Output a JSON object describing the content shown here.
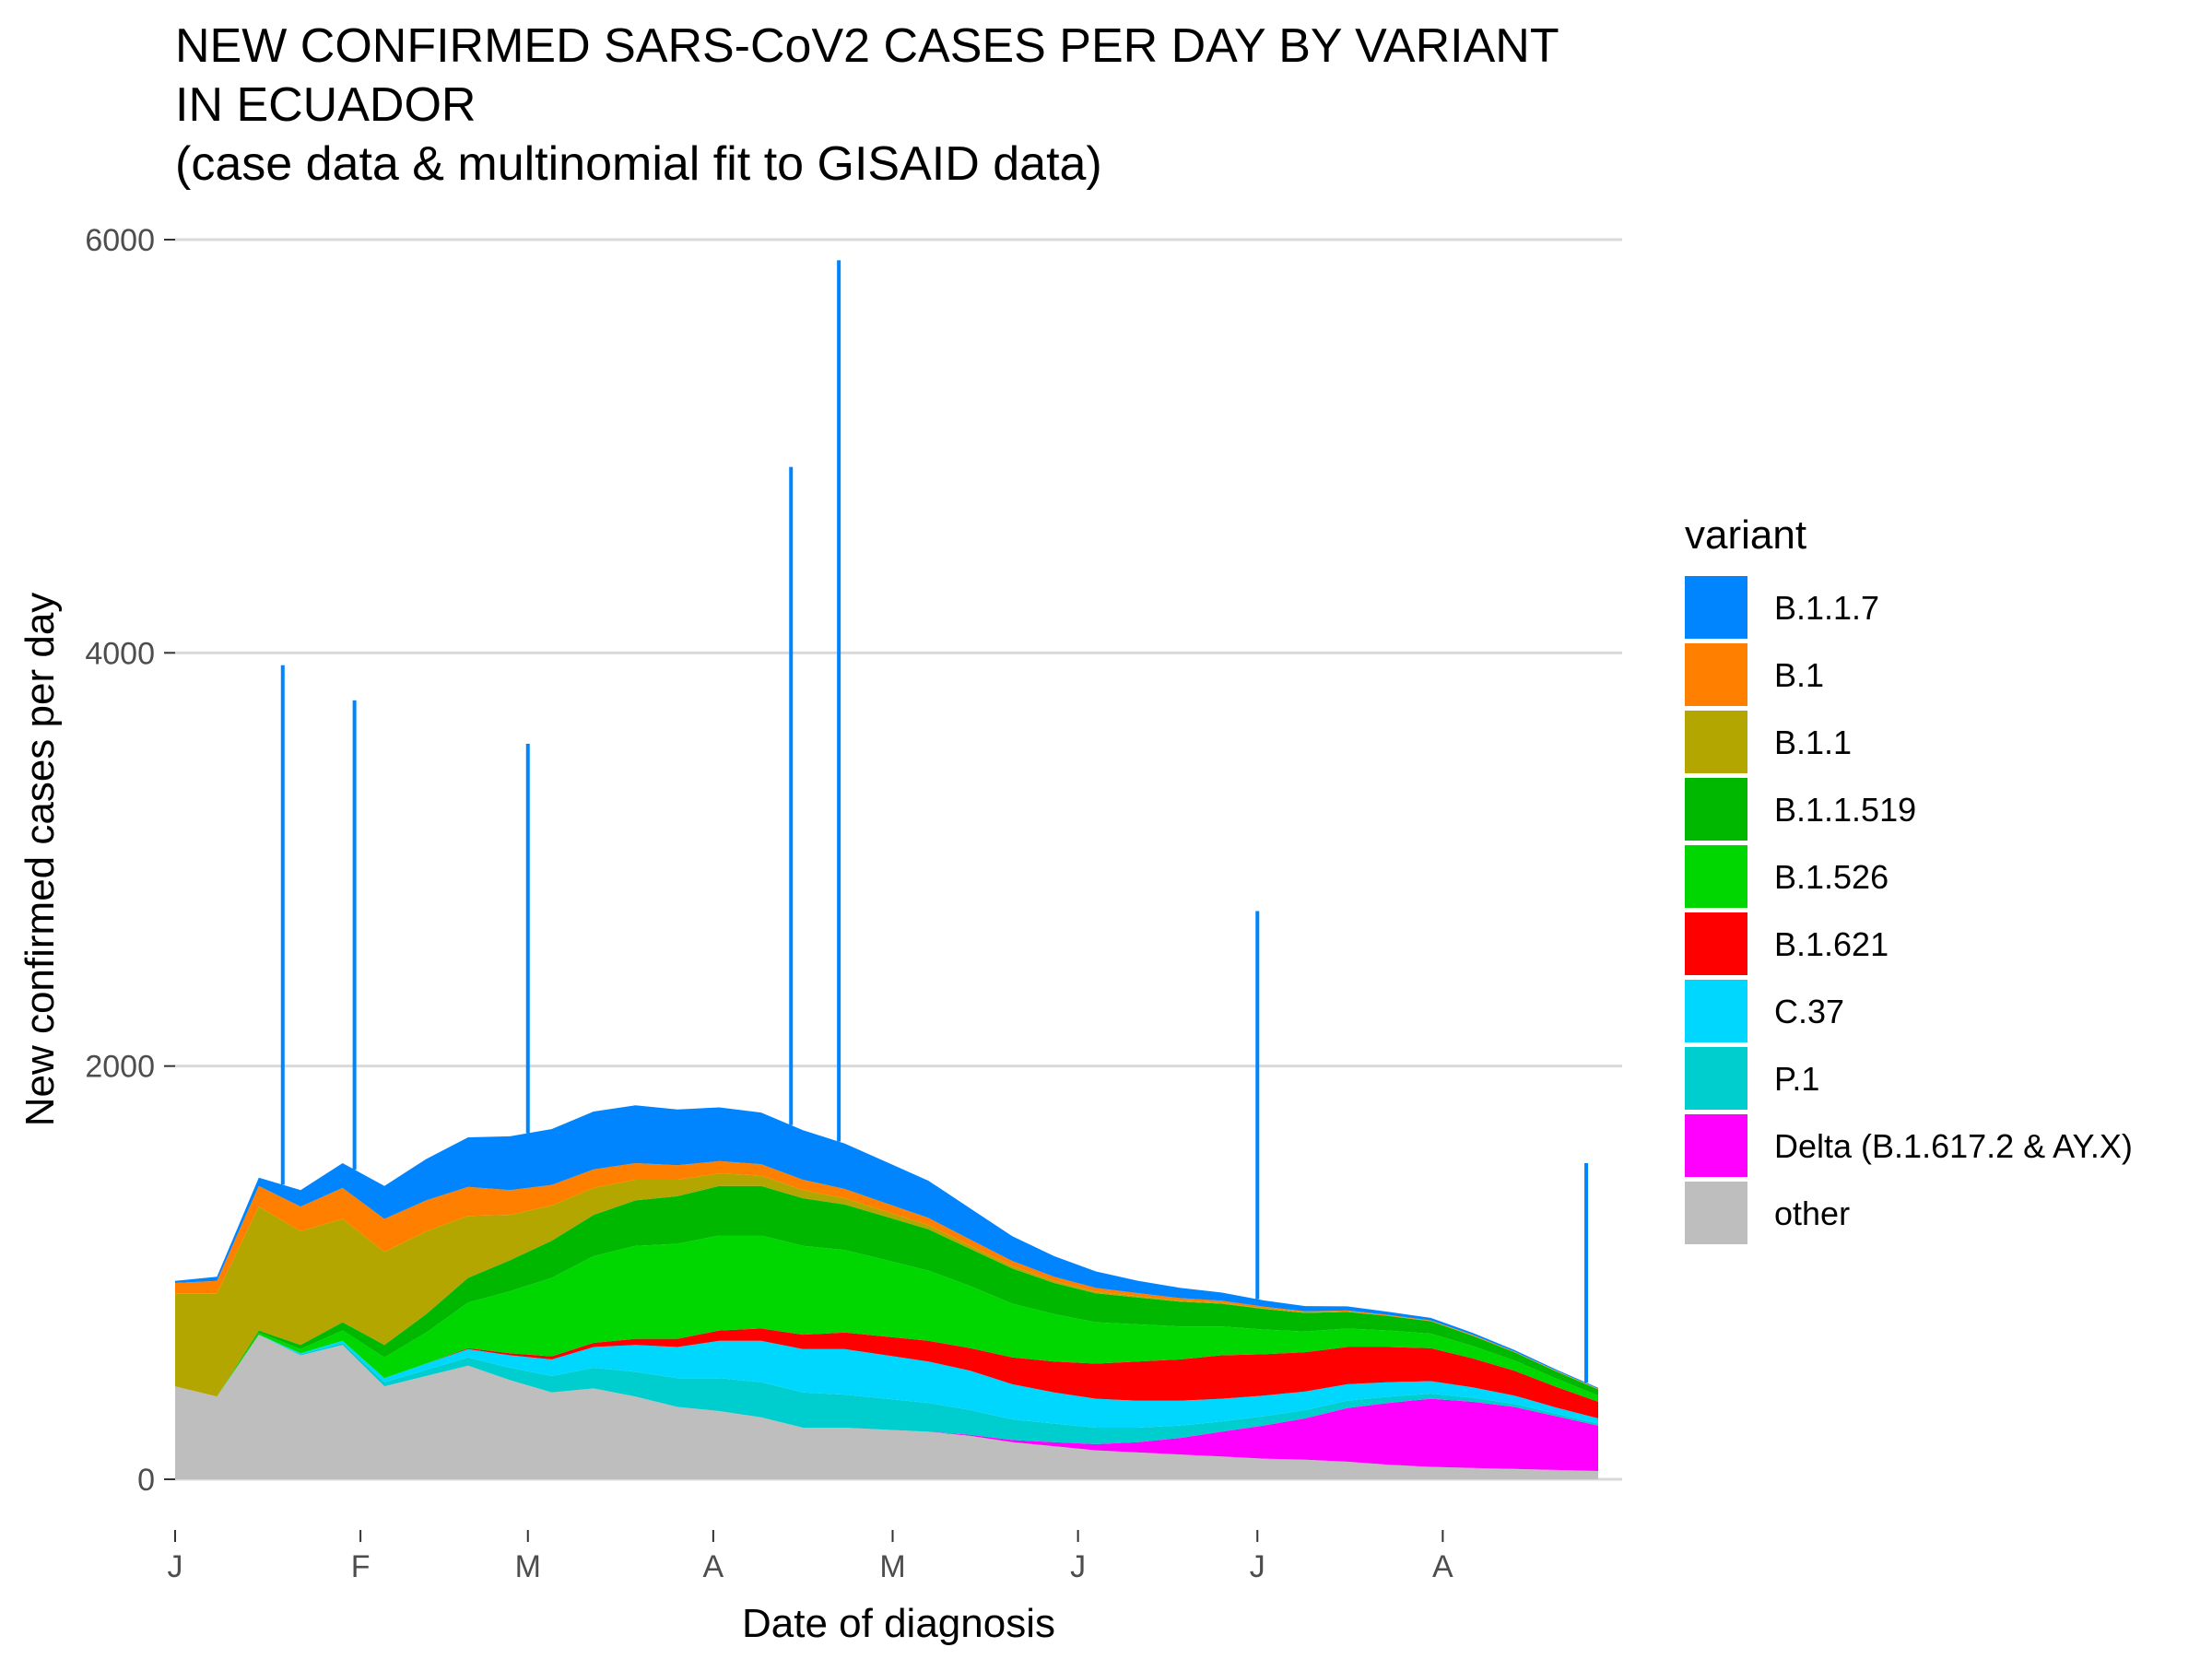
{
  "chart_data": {
    "type": "area",
    "stacked": true,
    "title": "NEW CONFIRMED SARS-CoV2 CASES PER DAY BY VARIANT\nIN ECUADOR\n(case data & multinomial fit to GISAID data)",
    "xlabel": "Date of diagnosis",
    "ylabel": "New confirmed cases per day",
    "ylim": [
      0,
      6000
    ],
    "yticks": [
      0,
      2000,
      4000,
      6000
    ],
    "x_range": [
      "2021-01-01",
      "2021-08-31"
    ],
    "xticks": [
      {
        "date": "2021-01-01",
        "label": "J"
      },
      {
        "date": "2021-02-01",
        "label": "F"
      },
      {
        "date": "2021-03-01",
        "label": "M"
      },
      {
        "date": "2021-04-01",
        "label": "A"
      },
      {
        "date": "2021-05-01",
        "label": "M"
      },
      {
        "date": "2021-06-01",
        "label": "J"
      },
      {
        "date": "2021-07-01",
        "label": "J"
      },
      {
        "date": "2021-08-01",
        "label": "A"
      }
    ],
    "grid": true,
    "legend_position": "right",
    "legend_title": "variant",
    "x": [
      "2021-01-01",
      "2021-01-08",
      "2021-01-15",
      "2021-01-22",
      "2021-01-29",
      "2021-02-05",
      "2021-02-12",
      "2021-02-19",
      "2021-02-26",
      "2021-03-05",
      "2021-03-12",
      "2021-03-19",
      "2021-03-26",
      "2021-04-02",
      "2021-04-09",
      "2021-04-16",
      "2021-04-23",
      "2021-04-30",
      "2021-05-07",
      "2021-05-14",
      "2021-05-21",
      "2021-05-28",
      "2021-06-04",
      "2021-06-11",
      "2021-06-18",
      "2021-06-25",
      "2021-07-02",
      "2021-07-09",
      "2021-07-16",
      "2021-07-23",
      "2021-07-30",
      "2021-08-06",
      "2021-08-13",
      "2021-08-20",
      "2021-08-27"
    ],
    "series": [
      {
        "name": "other",
        "color": "#BEBEBE",
        "values": [
          450,
          400,
          700,
          600,
          650,
          450,
          500,
          550,
          480,
          420,
          440,
          400,
          350,
          330,
          300,
          250,
          250,
          240,
          230,
          210,
          180,
          160,
          140,
          130,
          120,
          110,
          100,
          95,
          85,
          70,
          60,
          55,
          50,
          45,
          40
        ]
      },
      {
        "name": "Delta (B.1.617.2 & AY.X)",
        "color": "#FF00FF",
        "values": [
          0,
          0,
          0,
          0,
          0,
          0,
          0,
          0,
          0,
          0,
          0,
          0,
          0,
          0,
          0,
          0,
          0,
          0,
          0,
          5,
          10,
          20,
          30,
          50,
          80,
          120,
          160,
          200,
          260,
          300,
          330,
          320,
          300,
          260,
          220
        ]
      },
      {
        "name": "P.1",
        "color": "#00CDCD",
        "values": [
          0,
          0,
          0,
          5,
          10,
          20,
          30,
          40,
          60,
          80,
          100,
          120,
          140,
          160,
          170,
          170,
          160,
          150,
          140,
          120,
          100,
          90,
          80,
          70,
          60,
          50,
          45,
          40,
          35,
          30,
          25,
          20,
          15,
          12,
          10
        ]
      },
      {
        "name": "C.37",
        "color": "#00D7FF",
        "values": [
          0,
          0,
          0,
          5,
          10,
          20,
          30,
          40,
          60,
          80,
          100,
          130,
          150,
          180,
          200,
          210,
          220,
          210,
          200,
          190,
          170,
          150,
          140,
          130,
          120,
          110,
          100,
          90,
          80,
          70,
          60,
          50,
          40,
          30,
          25
        ]
      },
      {
        "name": "B.1.621",
        "color": "#FF0000",
        "values": [
          0,
          0,
          0,
          0,
          0,
          0,
          0,
          5,
          10,
          15,
          20,
          30,
          40,
          50,
          60,
          70,
          80,
          90,
          100,
          110,
          130,
          150,
          170,
          190,
          200,
          210,
          200,
          190,
          180,
          170,
          160,
          140,
          120,
          100,
          80
        ]
      },
      {
        "name": "B.1.526",
        "color": "#00D600",
        "values": [
          0,
          0,
          10,
          20,
          50,
          100,
          150,
          220,
          300,
          380,
          420,
          450,
          460,
          460,
          450,
          430,
          400,
          370,
          340,
          300,
          260,
          230,
          200,
          180,
          160,
          140,
          120,
          100,
          90,
          80,
          70,
          60,
          50,
          40,
          30
        ]
      },
      {
        "name": "B.1.1.519",
        "color": "#00B800",
        "values": [
          0,
          0,
          10,
          20,
          40,
          60,
          90,
          120,
          150,
          180,
          200,
          220,
          230,
          240,
          240,
          230,
          220,
          210,
          200,
          180,
          170,
          150,
          140,
          130,
          120,
          110,
          100,
          90,
          80,
          70,
          60,
          50,
          40,
          35,
          30
        ]
      },
      {
        "name": "B.1.1",
        "color": "#B3A600",
        "values": [
          450,
          500,
          600,
          550,
          500,
          450,
          400,
          300,
          220,
          170,
          130,
          100,
          80,
          60,
          50,
          40,
          30,
          25,
          20,
          15,
          12,
          10,
          8,
          6,
          5,
          4,
          3,
          2,
          2,
          1,
          1,
          1,
          1,
          1,
          1
        ]
      },
      {
        "name": "B.1",
        "color": "#FF8000",
        "values": [
          50,
          60,
          100,
          120,
          150,
          160,
          150,
          140,
          120,
          100,
          90,
          80,
          70,
          60,
          55,
          50,
          45,
          40,
          35,
          30,
          25,
          20,
          18,
          15,
          12,
          10,
          8,
          6,
          5,
          4,
          3,
          3,
          2,
          2,
          2
        ]
      },
      {
        "name": "B.1.1.7",
        "color": "#0085FF",
        "values": [
          10,
          20,
          40,
          80,
          120,
          160,
          200,
          240,
          260,
          270,
          280,
          280,
          270,
          260,
          250,
          240,
          220,
          200,
          180,
          150,
          120,
          100,
          80,
          60,
          50,
          40,
          30,
          25,
          20,
          15,
          12,
          10,
          8,
          6,
          5
        ]
      }
    ],
    "legend_order": [
      "B.1.1.7",
      "B.1",
      "B.1.1",
      "B.1.1.519",
      "B.1.526",
      "B.1.621",
      "C.37",
      "P.1",
      "Delta (B.1.617.2 & AY.X)",
      "other"
    ],
    "total_spikes": [
      {
        "date": "2021-01-19",
        "value": 3940
      },
      {
        "date": "2021-01-31",
        "value": 3770
      },
      {
        "date": "2021-03-01",
        "value": 3560
      },
      {
        "date": "2021-04-14",
        "value": 4900
      },
      {
        "date": "2021-04-22",
        "value": 5900
      },
      {
        "date": "2021-07-01",
        "value": 2750
      },
      {
        "date": "2021-08-25",
        "value": 1530
      }
    ]
  }
}
